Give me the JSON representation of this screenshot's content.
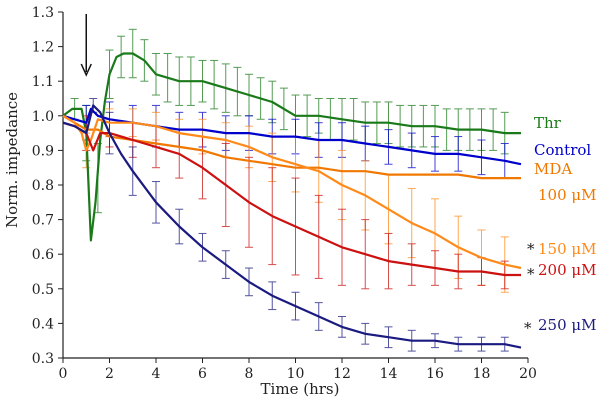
{
  "chart_data": {
    "type": "line",
    "xlabel": "Time (hrs)",
    "ylabel": "Norm. impedance",
    "xlim": [
      0,
      20
    ],
    "ylim": [
      0.3,
      1.3
    ],
    "xticks": [
      0,
      2,
      4,
      6,
      8,
      10,
      12,
      14,
      16,
      18,
      20
    ],
    "yticks": [
      0.3,
      0.4,
      0.5,
      0.6,
      0.7,
      0.8,
      0.9,
      1.0,
      1.1,
      1.2,
      1.3
    ],
    "grid": false,
    "annotation": {
      "type": "arrow",
      "x": 1.0,
      "meaning": "treatment added"
    },
    "series": [
      {
        "name": "Thr",
        "color": "#1a7a1a",
        "label_lines": [
          "Thr"
        ],
        "significant": false,
        "x": [
          0,
          0.4,
          0.8,
          1.0,
          1.2,
          1.4,
          1.6,
          1.8,
          2.0,
          2.3,
          2.6,
          3.0,
          3.5,
          4.0,
          5.0,
          6.0,
          7.0,
          8.0,
          9.0,
          10.0,
          11.0,
          12.0,
          13.0,
          14.0,
          15.0,
          16.0,
          17.0,
          18.0,
          19.0,
          19.7
        ],
        "y": [
          1.0,
          1.02,
          1.02,
          0.95,
          0.64,
          0.75,
          0.93,
          1.04,
          1.12,
          1.17,
          1.18,
          1.18,
          1.16,
          1.12,
          1.1,
          1.1,
          1.08,
          1.06,
          1.04,
          1.0,
          1.0,
          0.99,
          0.98,
          0.98,
          0.97,
          0.97,
          0.96,
          0.96,
          0.95,
          0.95
        ],
        "errorbars": [
          {
            "x": 0.5,
            "y": 1.02,
            "err": 0.03
          },
          {
            "x": 1.0,
            "y": 0.95,
            "err": 0.08
          },
          {
            "x": 1.5,
            "y": 0.82,
            "err": 0.1
          },
          {
            "x": 2.0,
            "y": 1.12,
            "err": 0.07
          },
          {
            "x": 2.5,
            "y": 1.17,
            "err": 0.06
          },
          {
            "x": 3.0,
            "y": 1.18,
            "err": 0.07
          },
          {
            "x": 3.5,
            "y": 1.16,
            "err": 0.06
          },
          {
            "x": 4.0,
            "y": 1.12,
            "err": 0.06
          },
          {
            "x": 4.5,
            "y": 1.11,
            "err": 0.07
          },
          {
            "x": 5.0,
            "y": 1.1,
            "err": 0.07
          },
          {
            "x": 5.5,
            "y": 1.1,
            "err": 0.07
          },
          {
            "x": 6.0,
            "y": 1.1,
            "err": 0.06
          },
          {
            "x": 6.5,
            "y": 1.09,
            "err": 0.07
          },
          {
            "x": 7.0,
            "y": 1.08,
            "err": 0.07
          },
          {
            "x": 7.5,
            "y": 1.07,
            "err": 0.07
          },
          {
            "x": 8.0,
            "y": 1.06,
            "err": 0.06
          },
          {
            "x": 8.5,
            "y": 1.05,
            "err": 0.06
          },
          {
            "x": 9.0,
            "y": 1.04,
            "err": 0.06
          },
          {
            "x": 9.5,
            "y": 1.02,
            "err": 0.06
          },
          {
            "x": 10.0,
            "y": 1.0,
            "err": 0.06
          },
          {
            "x": 10.5,
            "y": 1.0,
            "err": 0.06
          },
          {
            "x": 11.0,
            "y": 1.0,
            "err": 0.05
          },
          {
            "x": 11.5,
            "y": 0.99,
            "err": 0.06
          },
          {
            "x": 12.0,
            "y": 0.99,
            "err": 0.06
          },
          {
            "x": 12.5,
            "y": 0.99,
            "err": 0.06
          },
          {
            "x": 13.0,
            "y": 0.98,
            "err": 0.06
          },
          {
            "x": 13.5,
            "y": 0.98,
            "err": 0.06
          },
          {
            "x": 14.0,
            "y": 0.98,
            "err": 0.06
          },
          {
            "x": 14.5,
            "y": 0.97,
            "err": 0.06
          },
          {
            "x": 15.0,
            "y": 0.97,
            "err": 0.06
          },
          {
            "x": 15.5,
            "y": 0.97,
            "err": 0.06
          },
          {
            "x": 16.0,
            "y": 0.97,
            "err": 0.06
          },
          {
            "x": 16.5,
            "y": 0.96,
            "err": 0.06
          },
          {
            "x": 17.0,
            "y": 0.96,
            "err": 0.06
          },
          {
            "x": 17.5,
            "y": 0.96,
            "err": 0.06
          },
          {
            "x": 18.0,
            "y": 0.96,
            "err": 0.06
          },
          {
            "x": 18.5,
            "y": 0.96,
            "err": 0.06
          },
          {
            "x": 19.0,
            "y": 0.95,
            "err": 0.06
          }
        ]
      },
      {
        "name": "Control",
        "color": "#0000cc",
        "label_lines": [
          "Control"
        ],
        "significant": false,
        "x": [
          0,
          0.5,
          1.0,
          1.2,
          1.5,
          2.0,
          3.0,
          4.0,
          5.0,
          6.0,
          7.0,
          8.0,
          9.0,
          10.0,
          11.0,
          12.0,
          13.0,
          14.0,
          15.0,
          16.0,
          17.0,
          18.0,
          19.0,
          19.7
        ],
        "y": [
          1.0,
          0.99,
          0.98,
          1.02,
          1.0,
          0.99,
          0.98,
          0.97,
          0.96,
          0.96,
          0.95,
          0.95,
          0.94,
          0.94,
          0.93,
          0.93,
          0.92,
          0.91,
          0.9,
          0.89,
          0.89,
          0.88,
          0.87,
          0.86
        ],
        "errorbars": [
          {
            "x": 1.0,
            "y": 0.98,
            "err": 0.05
          },
          {
            "x": 2.0,
            "y": 0.99,
            "err": 0.05
          },
          {
            "x": 3.0,
            "y": 0.98,
            "err": 0.05
          },
          {
            "x": 4.0,
            "y": 0.97,
            "err": 0.06
          },
          {
            "x": 5.0,
            "y": 0.96,
            "err": 0.05
          },
          {
            "x": 6.0,
            "y": 0.96,
            "err": 0.05
          },
          {
            "x": 7.0,
            "y": 0.95,
            "err": 0.05
          },
          {
            "x": 8.0,
            "y": 0.95,
            "err": 0.05
          },
          {
            "x": 9.0,
            "y": 0.94,
            "err": 0.05
          },
          {
            "x": 10.0,
            "y": 0.94,
            "err": 0.05
          },
          {
            "x": 11.0,
            "y": 0.93,
            "err": 0.05
          },
          {
            "x": 12.0,
            "y": 0.93,
            "err": 0.05
          },
          {
            "x": 13.0,
            "y": 0.92,
            "err": 0.05
          },
          {
            "x": 14.0,
            "y": 0.91,
            "err": 0.05
          },
          {
            "x": 15.0,
            "y": 0.9,
            "err": 0.05
          },
          {
            "x": 16.0,
            "y": 0.89,
            "err": 0.05
          },
          {
            "x": 17.0,
            "y": 0.89,
            "err": 0.05
          },
          {
            "x": 18.0,
            "y": 0.88,
            "err": 0.05
          },
          {
            "x": 19.0,
            "y": 0.87,
            "err": 0.05
          }
        ]
      },
      {
        "name": "MDA 100 µM",
        "color": "#f07800",
        "label_lines": [
          "MDA",
          "100 μM"
        ],
        "significant": false,
        "x": [
          0,
          0.5,
          1.0,
          1.5,
          2.0,
          3.0,
          4.0,
          5.0,
          6.0,
          7.0,
          8.0,
          9.0,
          10.0,
          11.0,
          12.0,
          13.0,
          14.0,
          15.0,
          16.0,
          17.0,
          18.0,
          19.0,
          19.7
        ],
        "y": [
          1.0,
          0.98,
          0.96,
          0.96,
          0.94,
          0.93,
          0.92,
          0.91,
          0.9,
          0.88,
          0.87,
          0.86,
          0.85,
          0.85,
          0.84,
          0.84,
          0.83,
          0.83,
          0.83,
          0.83,
          0.82,
          0.82,
          0.82
        ]
      },
      {
        "name": "150 µM",
        "color": "#ff8a1a",
        "label_lines": [
          "150 μM"
        ],
        "significant": true,
        "x": [
          0,
          0.5,
          0.8,
          1.0,
          1.2,
          1.5,
          2.0,
          3.0,
          4.0,
          5.0,
          6.0,
          7.0,
          8.0,
          9.0,
          10.0,
          11.0,
          12.0,
          13.0,
          14.0,
          15.0,
          16.0,
          17.0,
          18.0,
          19.0,
          19.7
        ],
        "y": [
          1.0,
          0.98,
          0.95,
          0.9,
          0.93,
          0.99,
          0.98,
          0.98,
          0.97,
          0.95,
          0.94,
          0.93,
          0.91,
          0.88,
          0.86,
          0.84,
          0.8,
          0.77,
          0.73,
          0.69,
          0.66,
          0.62,
          0.59,
          0.57,
          0.56
        ],
        "errorbars": [
          {
            "x": 1.0,
            "y": 0.9,
            "err": 0.05
          },
          {
            "x": 2.0,
            "y": 0.98,
            "err": 0.04
          },
          {
            "x": 3.0,
            "y": 0.98,
            "err": 0.04
          },
          {
            "x": 4.0,
            "y": 0.97,
            "err": 0.04
          },
          {
            "x": 5.0,
            "y": 0.95,
            "err": 0.04
          },
          {
            "x": 6.0,
            "y": 0.94,
            "err": 0.05
          },
          {
            "x": 7.0,
            "y": 0.93,
            "err": 0.05
          },
          {
            "x": 8.0,
            "y": 0.91,
            "err": 0.06
          },
          {
            "x": 9.0,
            "y": 0.88,
            "err": 0.07
          },
          {
            "x": 10.0,
            "y": 0.86,
            "err": 0.08
          },
          {
            "x": 11.0,
            "y": 0.84,
            "err": 0.09
          },
          {
            "x": 12.0,
            "y": 0.8,
            "err": 0.1
          },
          {
            "x": 13.0,
            "y": 0.77,
            "err": 0.1
          },
          {
            "x": 14.0,
            "y": 0.73,
            "err": 0.1
          },
          {
            "x": 15.0,
            "y": 0.69,
            "err": 0.1
          },
          {
            "x": 16.0,
            "y": 0.66,
            "err": 0.1
          },
          {
            "x": 17.0,
            "y": 0.62,
            "err": 0.09
          },
          {
            "x": 18.0,
            "y": 0.59,
            "err": 0.08
          },
          {
            "x": 19.0,
            "y": 0.57,
            "err": 0.08
          }
        ]
      },
      {
        "name": "200 µM",
        "color": "#cc1111",
        "label_lines": [
          "200 μM"
        ],
        "significant": true,
        "x": [
          0,
          0.5,
          1.0,
          1.3,
          1.6,
          2.0,
          3.0,
          4.0,
          5.0,
          6.0,
          7.0,
          8.0,
          9.0,
          10.0,
          11.0,
          12.0,
          13.0,
          14.0,
          15.0,
          16.0,
          17.0,
          18.0,
          19.0,
          19.7
        ],
        "y": [
          0.98,
          0.97,
          0.95,
          0.9,
          0.95,
          0.95,
          0.93,
          0.91,
          0.89,
          0.85,
          0.8,
          0.75,
          0.71,
          0.68,
          0.65,
          0.62,
          0.6,
          0.58,
          0.57,
          0.56,
          0.55,
          0.55,
          0.54,
          0.54
        ],
        "errorbars": [
          {
            "x": 1.0,
            "y": 0.95,
            "err": 0.05
          },
          {
            "x": 2.0,
            "y": 0.95,
            "err": 0.04
          },
          {
            "x": 3.0,
            "y": 0.93,
            "err": 0.05
          },
          {
            "x": 4.0,
            "y": 0.91,
            "err": 0.06
          },
          {
            "x": 5.0,
            "y": 0.89,
            "err": 0.07
          },
          {
            "x": 6.0,
            "y": 0.85,
            "err": 0.09
          },
          {
            "x": 7.0,
            "y": 0.8,
            "err": 0.12
          },
          {
            "x": 8.0,
            "y": 0.75,
            "err": 0.13
          },
          {
            "x": 9.0,
            "y": 0.71,
            "err": 0.14
          },
          {
            "x": 10.0,
            "y": 0.68,
            "err": 0.14
          },
          {
            "x": 11.0,
            "y": 0.65,
            "err": 0.12
          },
          {
            "x": 12.0,
            "y": 0.62,
            "err": 0.11
          },
          {
            "x": 13.0,
            "y": 0.6,
            "err": 0.1
          },
          {
            "x": 14.0,
            "y": 0.58,
            "err": 0.08
          },
          {
            "x": 15.0,
            "y": 0.57,
            "err": 0.06
          },
          {
            "x": 16.0,
            "y": 0.56,
            "err": 0.05
          },
          {
            "x": 17.0,
            "y": 0.55,
            "err": 0.05
          },
          {
            "x": 18.0,
            "y": 0.55,
            "err": 0.04
          },
          {
            "x": 19.0,
            "y": 0.54,
            "err": 0.04
          }
        ]
      },
      {
        "name": "250 µM",
        "color": "#1a1a80",
        "label_lines": [
          "250 μM"
        ],
        "significant": true,
        "x": [
          0,
          0.5,
          1.0,
          1.3,
          1.6,
          2.0,
          2.5,
          3.0,
          4.0,
          5.0,
          6.0,
          7.0,
          8.0,
          9.0,
          10.0,
          11.0,
          12.0,
          13.0,
          14.0,
          15.0,
          16.0,
          17.0,
          18.0,
          19.0,
          19.7
        ],
        "y": [
          0.98,
          0.97,
          0.95,
          1.03,
          1.01,
          0.95,
          0.89,
          0.84,
          0.75,
          0.68,
          0.62,
          0.57,
          0.52,
          0.48,
          0.45,
          0.42,
          0.39,
          0.37,
          0.36,
          0.35,
          0.35,
          0.34,
          0.34,
          0.34,
          0.33
        ],
        "errorbars": [
          {
            "x": 1.3,
            "y": 1.03,
            "err": 0.02
          },
          {
            "x": 2.0,
            "y": 0.95,
            "err": 0.06
          },
          {
            "x": 3.0,
            "y": 0.84,
            "err": 0.07
          },
          {
            "x": 4.0,
            "y": 0.75,
            "err": 0.06
          },
          {
            "x": 5.0,
            "y": 0.68,
            "err": 0.05
          },
          {
            "x": 6.0,
            "y": 0.62,
            "err": 0.04
          },
          {
            "x": 7.0,
            "y": 0.57,
            "err": 0.04
          },
          {
            "x": 8.0,
            "y": 0.52,
            "err": 0.04
          },
          {
            "x": 9.0,
            "y": 0.48,
            "err": 0.04
          },
          {
            "x": 10.0,
            "y": 0.45,
            "err": 0.04
          },
          {
            "x": 11.0,
            "y": 0.42,
            "err": 0.04
          },
          {
            "x": 12.0,
            "y": 0.39,
            "err": 0.03
          },
          {
            "x": 13.0,
            "y": 0.37,
            "err": 0.03
          },
          {
            "x": 14.0,
            "y": 0.36,
            "err": 0.03
          },
          {
            "x": 15.0,
            "y": 0.35,
            "err": 0.03
          },
          {
            "x": 16.0,
            "y": 0.35,
            "err": 0.02
          },
          {
            "x": 17.0,
            "y": 0.34,
            "err": 0.02
          },
          {
            "x": 18.0,
            "y": 0.34,
            "err": 0.02
          },
          {
            "x": 19.0,
            "y": 0.34,
            "err": 0.02
          }
        ]
      }
    ],
    "significance_marker": "*"
  }
}
